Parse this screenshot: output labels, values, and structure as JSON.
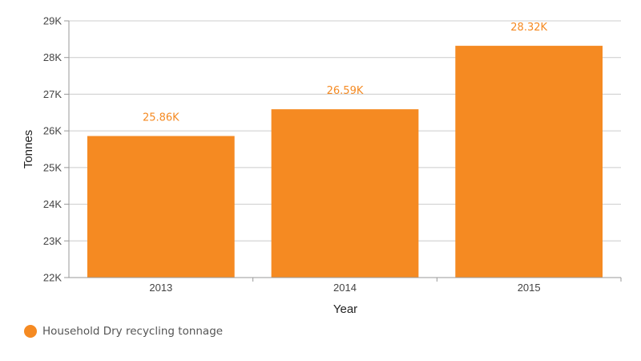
{
  "chart_data": {
    "type": "bar",
    "title": "",
    "xlabel": "Year",
    "ylabel": "Tonnes",
    "categories": [
      "2013",
      "2014",
      "2015"
    ],
    "series": [
      {
        "name": "Household Dry recycling tonnage",
        "values": [
          25860,
          26590,
          28320
        ],
        "labels": [
          "25.86K",
          "26.59K",
          "28.32K"
        ]
      }
    ],
    "ylim": [
      22000,
      29000
    ],
    "yticks": [
      22000,
      23000,
      24000,
      25000,
      26000,
      27000,
      28000,
      29000
    ],
    "ytick_labels": [
      "22K",
      "23K",
      "24K",
      "25K",
      "26K",
      "27K",
      "28K",
      "29K"
    ],
    "grid": true,
    "legend_position": "bottom-left",
    "colors": {
      "bar": "#f58a22",
      "data_label": "#f58a22",
      "grid": "#cccccc",
      "axis": "#999999"
    }
  }
}
